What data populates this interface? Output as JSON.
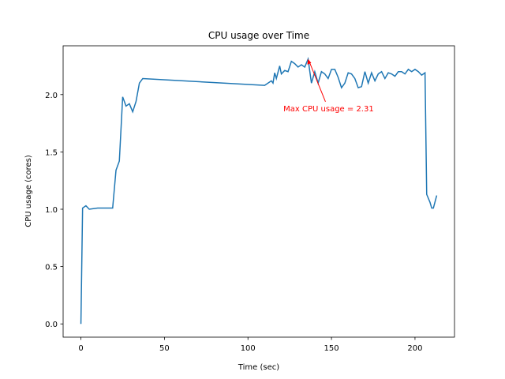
{
  "chart_data": {
    "type": "line",
    "title": "CPU usage over Time",
    "xlabel": "Time (sec)",
    "ylabel": "CPU usage (cores)",
    "x": [
      0,
      1,
      3,
      5,
      10,
      19,
      21,
      23,
      25,
      27,
      29,
      31,
      33,
      35,
      37,
      110,
      114,
      115,
      116,
      117,
      119,
      120,
      122,
      124,
      126,
      128,
      130,
      132,
      134,
      136,
      138,
      140,
      142,
      144,
      146,
      148,
      150,
      152,
      154,
      156,
      158,
      160,
      162,
      164,
      166,
      168,
      170,
      172,
      174,
      176,
      178,
      180,
      182,
      184,
      186,
      188,
      190,
      192,
      194,
      196,
      198,
      200,
      202,
      204,
      206,
      207,
      209,
      210,
      211,
      213
    ],
    "series": [
      {
        "name": "CPU usage",
        "color": "#1f77b4",
        "values": [
          0,
          1.01,
          1.03,
          1.0,
          1.01,
          1.01,
          1.34,
          1.42,
          1.98,
          1.9,
          1.92,
          1.85,
          1.94,
          2.1,
          2.14,
          2.08,
          2.12,
          2.1,
          2.19,
          2.14,
          2.25,
          2.18,
          2.21,
          2.2,
          2.29,
          2.27,
          2.24,
          2.26,
          2.24,
          2.31,
          2.1,
          2.2,
          2.1,
          2.2,
          2.18,
          2.14,
          2.22,
          2.22,
          2.15,
          2.06,
          2.1,
          2.19,
          2.18,
          2.14,
          2.06,
          2.07,
          2.2,
          2.1,
          2.19,
          2.12,
          2.18,
          2.2,
          2.14,
          2.19,
          2.18,
          2.16,
          2.2,
          2.2,
          2.18,
          2.22,
          2.2,
          2.22,
          2.2,
          2.17,
          2.19,
          1.13,
          1.06,
          1.01,
          1.01,
          1.12
        ]
      }
    ],
    "xlim": [
      -10.65,
      223.65
    ],
    "xticks": [
      0,
      50,
      100,
      150,
      200
    ],
    "ylim": [
      -0.1155,
      2.4255
    ],
    "yticks": [
      {
        "value": 0,
        "label": "0.0"
      },
      0.5,
      {
        "value": 1,
        "label": "1.0"
      },
      1.5,
      {
        "value": 2,
        "label": "2.0"
      }
    ],
    "annotation": {
      "text": "Max CPU usage = 2.31",
      "x": 136,
      "y": 2.31,
      "color": "#ff0000"
    }
  }
}
